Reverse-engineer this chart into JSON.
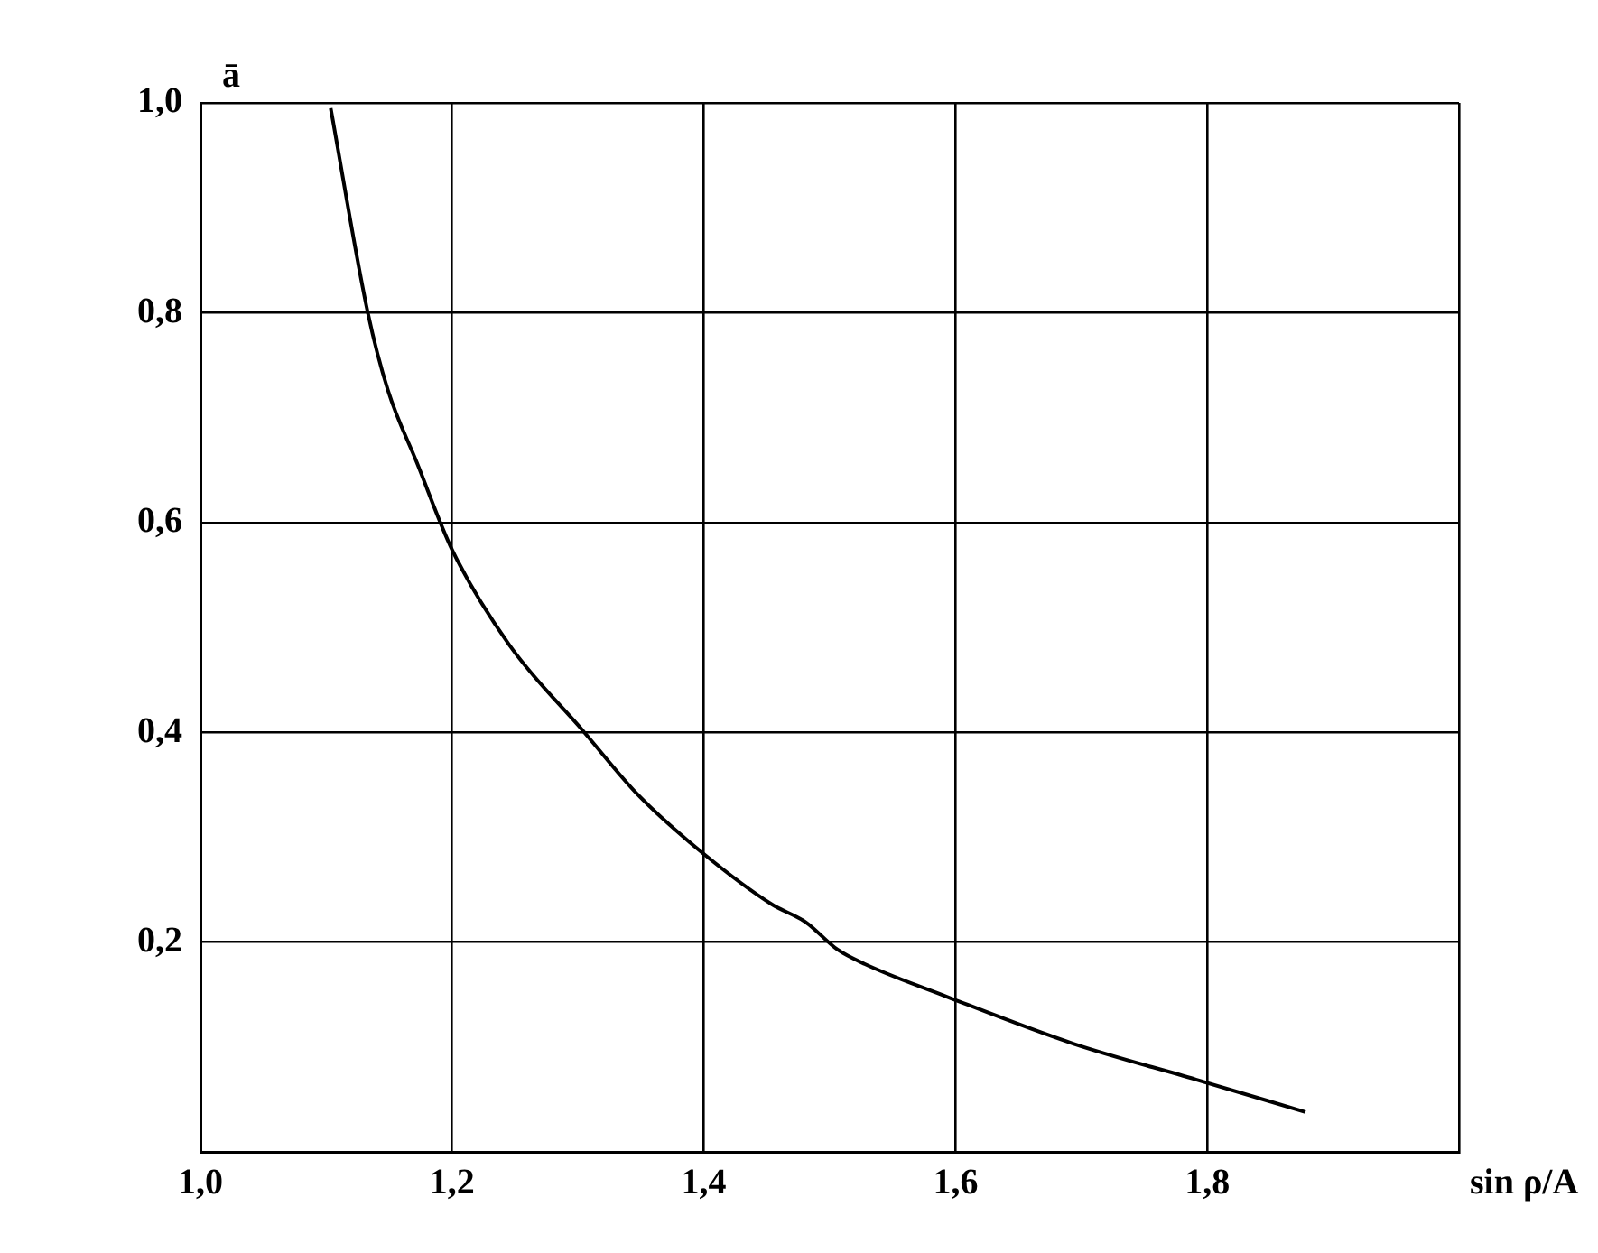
{
  "chart_data": {
    "type": "line",
    "xlabel": "sin ρ/A",
    "ylabel": "ā",
    "x": [
      1.1035,
      1.133,
      1.149,
      1.172,
      1.2,
      1.245,
      1.305,
      1.348,
      1.4,
      1.454,
      1.481,
      1.506,
      1.528,
      1.593,
      1.694,
      1.791,
      1.878
    ],
    "series": [
      {
        "color": "#000000",
        "values": [
          0.995,
          0.8,
          0.726,
          0.657,
          0.574,
          0.484,
          0.4,
          0.34,
          0.284,
          0.236,
          0.219,
          0.193,
          0.179,
          0.148,
          0.103,
          0.069,
          0.038
        ]
      }
    ],
    "xlim": [
      1.0,
      2.0
    ],
    "xticks": [
      {
        "value": 1.0,
        "label": "1,0"
      },
      {
        "value": 1.2,
        "label": "1,2"
      },
      {
        "value": 1.4,
        "label": "1,4"
      },
      {
        "value": 1.6,
        "label": "1,6"
      },
      {
        "value": 1.8,
        "label": "1,8"
      },
      {
        "value": 2.0,
        "label": null
      }
    ],
    "ylim": [
      0,
      1.0
    ],
    "yticks": [
      {
        "value": 0,
        "label": null
      },
      {
        "value": 0.2,
        "label": "0,2"
      },
      {
        "value": 0.4,
        "label": "0,4"
      },
      {
        "value": 0.6,
        "label": "0,6"
      },
      {
        "value": 0.8,
        "label": "0,8"
      },
      {
        "value": 1.0,
        "label": "1,0"
      }
    ],
    "grid": true,
    "legend": false,
    "marker": "none",
    "line_style": "solid"
  }
}
